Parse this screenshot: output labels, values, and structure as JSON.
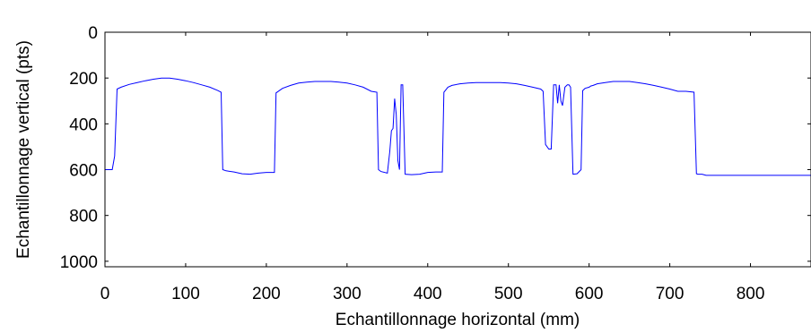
{
  "chart_data": {
    "type": "line",
    "title": "",
    "xlabel": "Echantillonnage horizontal (mm)",
    "ylabel": "Echantillonnage vertical (pts)",
    "xlim": [
      0,
      875
    ],
    "ylim": [
      0,
      1024
    ],
    "y_reversed": true,
    "grid": false,
    "x_ticks": [
      0,
      100,
      200,
      300,
      400,
      500,
      600,
      700,
      800
    ],
    "y_ticks": [
      0,
      200,
      400,
      600,
      800,
      1000
    ],
    "line_color": "#0000ff",
    "series": [
      {
        "x": [
          0,
          3,
          6,
          9,
          12,
          15,
          20,
          30,
          40,
          50,
          60,
          70,
          80,
          90,
          100,
          110,
          120,
          130,
          140,
          144,
          146,
          150,
          160,
          170,
          180,
          190,
          200,
          210,
          212,
          220,
          230,
          240,
          250,
          260,
          270,
          280,
          290,
          300,
          310,
          320,
          330,
          337,
          339,
          342,
          350,
          353,
          355,
          357,
          359,
          361,
          363,
          365,
          367,
          369,
          372,
          380,
          390,
          400,
          410,
          418,
          420,
          425,
          430,
          440,
          450,
          460,
          470,
          480,
          490,
          500,
          510,
          520,
          530,
          540,
          543,
          546,
          550,
          553,
          556,
          559,
          561,
          563,
          565,
          567,
          570,
          573,
          575,
          577,
          580,
          585,
          590,
          592,
          595,
          600,
          602,
          605,
          610,
          620,
          630,
          640,
          650,
          660,
          670,
          680,
          690,
          700,
          710,
          720,
          730,
          733,
          735,
          740,
          745,
          750,
          800,
          875
        ],
        "y": [
          600,
          600,
          600,
          600,
          540,
          248,
          240,
          228,
          220,
          212,
          205,
          200,
          200,
          205,
          212,
          220,
          230,
          240,
          255,
          262,
          600,
          605,
          610,
          618,
          620,
          615,
          612,
          612,
          265,
          245,
          232,
          222,
          218,
          215,
          215,
          215,
          218,
          222,
          230,
          240,
          258,
          262,
          600,
          608,
          615,
          520,
          430,
          420,
          290,
          360,
          560,
          600,
          230,
          230,
          620,
          622,
          620,
          612,
          610,
          610,
          262,
          240,
          232,
          225,
          222,
          220,
          220,
          220,
          220,
          222,
          225,
          232,
          240,
          248,
          258,
          490,
          510,
          510,
          230,
          230,
          310,
          230,
          300,
          320,
          240,
          230,
          230,
          240,
          620,
          618,
          600,
          255,
          245,
          240,
          235,
          232,
          225,
          220,
          215,
          215,
          215,
          220,
          225,
          232,
          240,
          248,
          258,
          258,
          262,
          618,
          620,
          620,
          625,
          625,
          625,
          625
        ]
      }
    ]
  }
}
